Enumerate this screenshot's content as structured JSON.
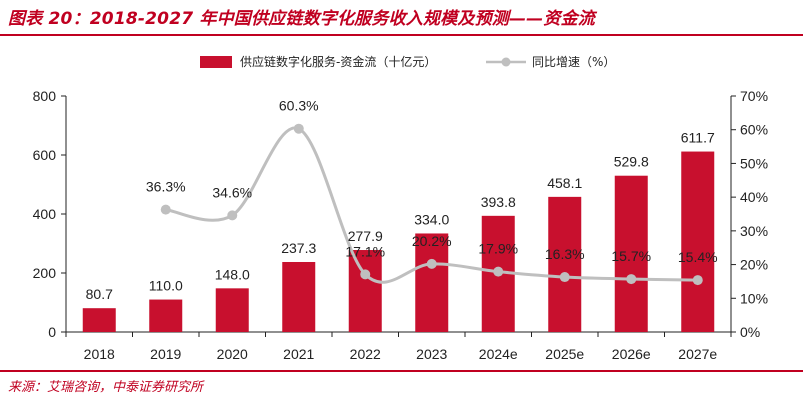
{
  "header": {
    "title": "图表 20：2018-2027 年中国供应链数字化服务收入规模及预测——资金流"
  },
  "footer": {
    "source": "来源：艾瑞咨询，中泰证券研究所"
  },
  "colors": {
    "bar": "#c8102e",
    "line": "#bfbfbf",
    "accent": "#c00020"
  },
  "chart_data": {
    "type": "bar",
    "categories": [
      "2018",
      "2019",
      "2020",
      "2021",
      "2022",
      "2023",
      "2024e",
      "2025e",
      "2026e",
      "2027e"
    ],
    "series": [
      {
        "name": "供应链数字化服务-资金流（十亿元）",
        "type": "bar",
        "axis": "left",
        "values": [
          80.7,
          110.0,
          148.0,
          237.3,
          277.9,
          334.0,
          393.8,
          458.1,
          529.8,
          611.7
        ],
        "labels": [
          "80.7",
          "110.0",
          "148.0",
          "237.3",
          "277.9",
          "334.0",
          "393.8",
          "458.1",
          "529.8",
          "611.7"
        ]
      },
      {
        "name": "同比增速（%）",
        "type": "line",
        "axis": "right",
        "smooth": true,
        "values": [
          null,
          36.3,
          34.6,
          60.3,
          17.1,
          20.2,
          17.9,
          16.3,
          15.7,
          15.4
        ],
        "labels": [
          "",
          "36.3%",
          "34.6%",
          "60.3%",
          "17.1%",
          "20.2%",
          "17.9%",
          "16.3%",
          "15.7%",
          "15.4%"
        ]
      }
    ],
    "y_left": {
      "ylim": [
        0,
        800
      ],
      "ticks": [
        "0",
        "200",
        "400",
        "600",
        "800"
      ]
    },
    "y_right": {
      "ylim": [
        0,
        70
      ],
      "ticks": [
        "0%",
        "10%",
        "20%",
        "30%",
        "40%",
        "50%",
        "60%",
        "70%"
      ]
    },
    "legend": "top-center",
    "grid": false
  }
}
